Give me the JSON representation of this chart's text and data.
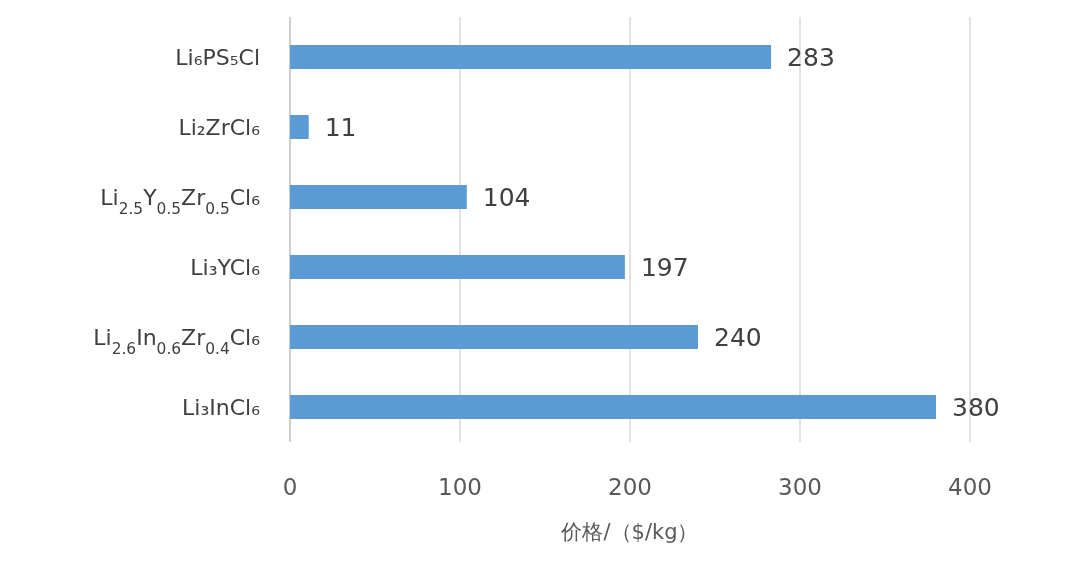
{
  "chart_data": {
    "type": "bar",
    "orientation": "horizontal",
    "categories": [
      "Li₆PS₅Cl",
      "Li₂ZrCl₆",
      "Li$_{2.5}$Y$_{0.5}$Zr$_{0.5}$Cl₆",
      "Li₃YCl₆",
      "Li$_{2.6}$In$_{0.6}$Zr$_{0.4}$Cl₆",
      "Li₃InCl₆"
    ],
    "values": [
      283,
      11,
      104,
      197,
      240,
      380
    ],
    "color": "#5b9bd5",
    "xlim": [
      0,
      400
    ],
    "xticks": [
      0,
      100,
      200,
      300,
      400
    ],
    "grid": "x",
    "data_labels": true,
    "xlabel": "价格/（$/kg）"
  }
}
